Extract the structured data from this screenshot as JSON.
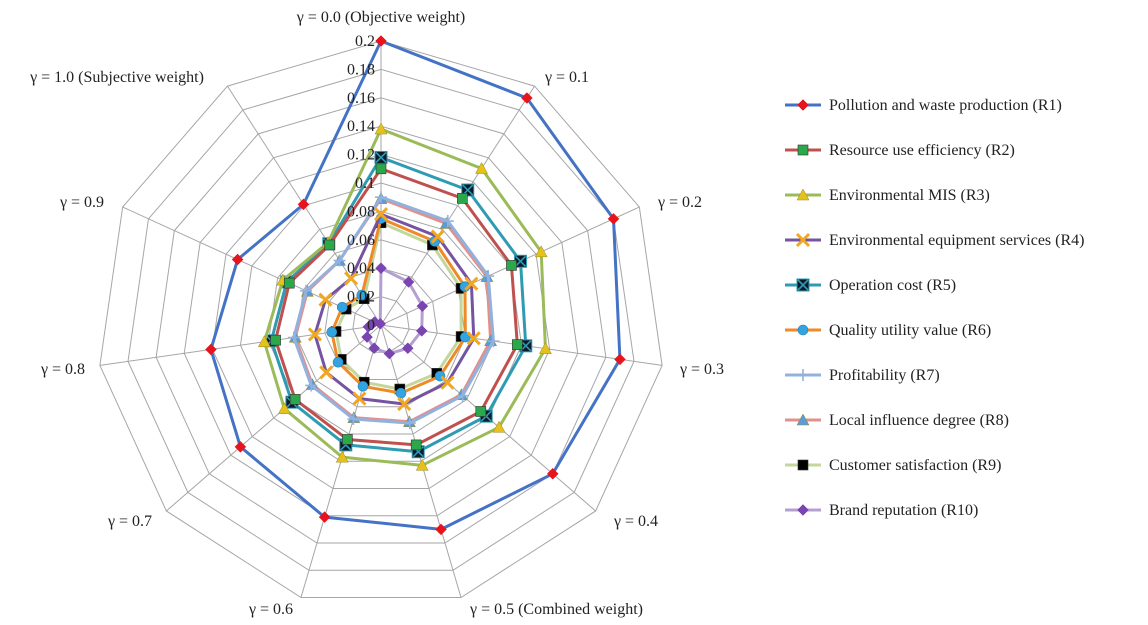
{
  "chart_data": {
    "type": "radar",
    "title": "",
    "axes": [
      "γ = 0.0 (Objective weight)",
      "γ = 0.1",
      "γ = 0.2",
      "γ = 0.3",
      "γ = 0.4",
      "γ = 0.5 (Combined weight)",
      "γ = 0.6",
      "γ = 0.7",
      "γ = 0.8",
      "γ = 0.9",
      "γ = 1.0 (Subjective weight)"
    ],
    "rlim": [
      0,
      0.2
    ],
    "ticks": [
      "0",
      "0.02",
      "0.04",
      "0.06",
      "0.08",
      "0.1",
      "0.12",
      "0.14",
      "0.16",
      "0.18",
      "0.2"
    ],
    "grid": true,
    "legend_position": "right",
    "series": [
      {
        "name": "Pollution and waste production (R1)",
        "color": "#4472c4",
        "marker": "diamond",
        "marker_color": "#e8141c",
        "values": [
          0.2,
          0.19,
          0.18,
          0.17,
          0.16,
          0.15,
          0.141,
          0.131,
          0.121,
          0.111,
          0.101
        ]
      },
      {
        "name": "Resource use efficiency (R2)",
        "color": "#c0504d",
        "marker": "square",
        "marker_color": "#2aa84a",
        "values": [
          0.11,
          0.106,
          0.101,
          0.097,
          0.093,
          0.088,
          0.084,
          0.08,
          0.075,
          0.071,
          0.067
        ]
      },
      {
        "name": "Environmental MIS (R3)",
        "color": "#9bbb59",
        "marker": "triangle",
        "marker_color": "#e6c11c",
        "values": [
          0.138,
          0.131,
          0.124,
          0.117,
          0.11,
          0.103,
          0.097,
          0.09,
          0.083,
          0.076,
          0.069
        ]
      },
      {
        "name": "Environmental equipment services (R4)",
        "color": "#7553a0",
        "marker": "x",
        "marker_color": "#f1a722",
        "values": [
          0.078,
          0.074,
          0.07,
          0.066,
          0.062,
          0.058,
          0.054,
          0.051,
          0.047,
          0.043,
          0.039
        ]
      },
      {
        "name": "Operation cost (R5)",
        "color": "#2e9bb3",
        "marker": "box-x",
        "marker_color": "#2e9bb3",
        "values": [
          0.118,
          0.113,
          0.108,
          0.103,
          0.098,
          0.093,
          0.088,
          0.083,
          0.078,
          0.073,
          0.068
        ]
      },
      {
        "name": "Quality utility value (R6)",
        "color": "#ee8a28",
        "marker": "circle",
        "marker_color": "#33a4e0",
        "values": [
          0.075,
          0.07,
          0.065,
          0.06,
          0.055,
          0.05,
          0.045,
          0.04,
          0.035,
          0.03,
          0.025
        ]
      },
      {
        "name": "Profitability (R7)",
        "color": "#93b1dd",
        "marker": "plus",
        "marker_color": "#93b1dd",
        "values": [
          0.09,
          0.087,
          0.083,
          0.08,
          0.076,
          0.072,
          0.069,
          0.065,
          0.062,
          0.058,
          0.054
        ]
      },
      {
        "name": "Local influence degree (R8)",
        "color": "#e2908d",
        "marker": "triangle",
        "marker_color": "#5a9bd8",
        "values": [
          0.089,
          0.085,
          0.082,
          0.078,
          0.075,
          0.071,
          0.068,
          0.064,
          0.061,
          0.057,
          0.054
        ]
      },
      {
        "name": "Customer satisfaction (R9)",
        "color": "#c3d69b",
        "marker": "square",
        "marker_color": "#000000",
        "values": [
          0.072,
          0.067,
          0.062,
          0.057,
          0.052,
          0.047,
          0.042,
          0.037,
          0.032,
          0.027,
          0.022
        ]
      },
      {
        "name": "Brand reputation (R10)",
        "color": "#b4a0d0",
        "marker": "diamond",
        "marker_color": "#7a45b0",
        "values": [
          0.04,
          0.036,
          0.032,
          0.029,
          0.025,
          0.021,
          0.017,
          0.013,
          0.009,
          0.005,
          0.001
        ]
      }
    ]
  }
}
